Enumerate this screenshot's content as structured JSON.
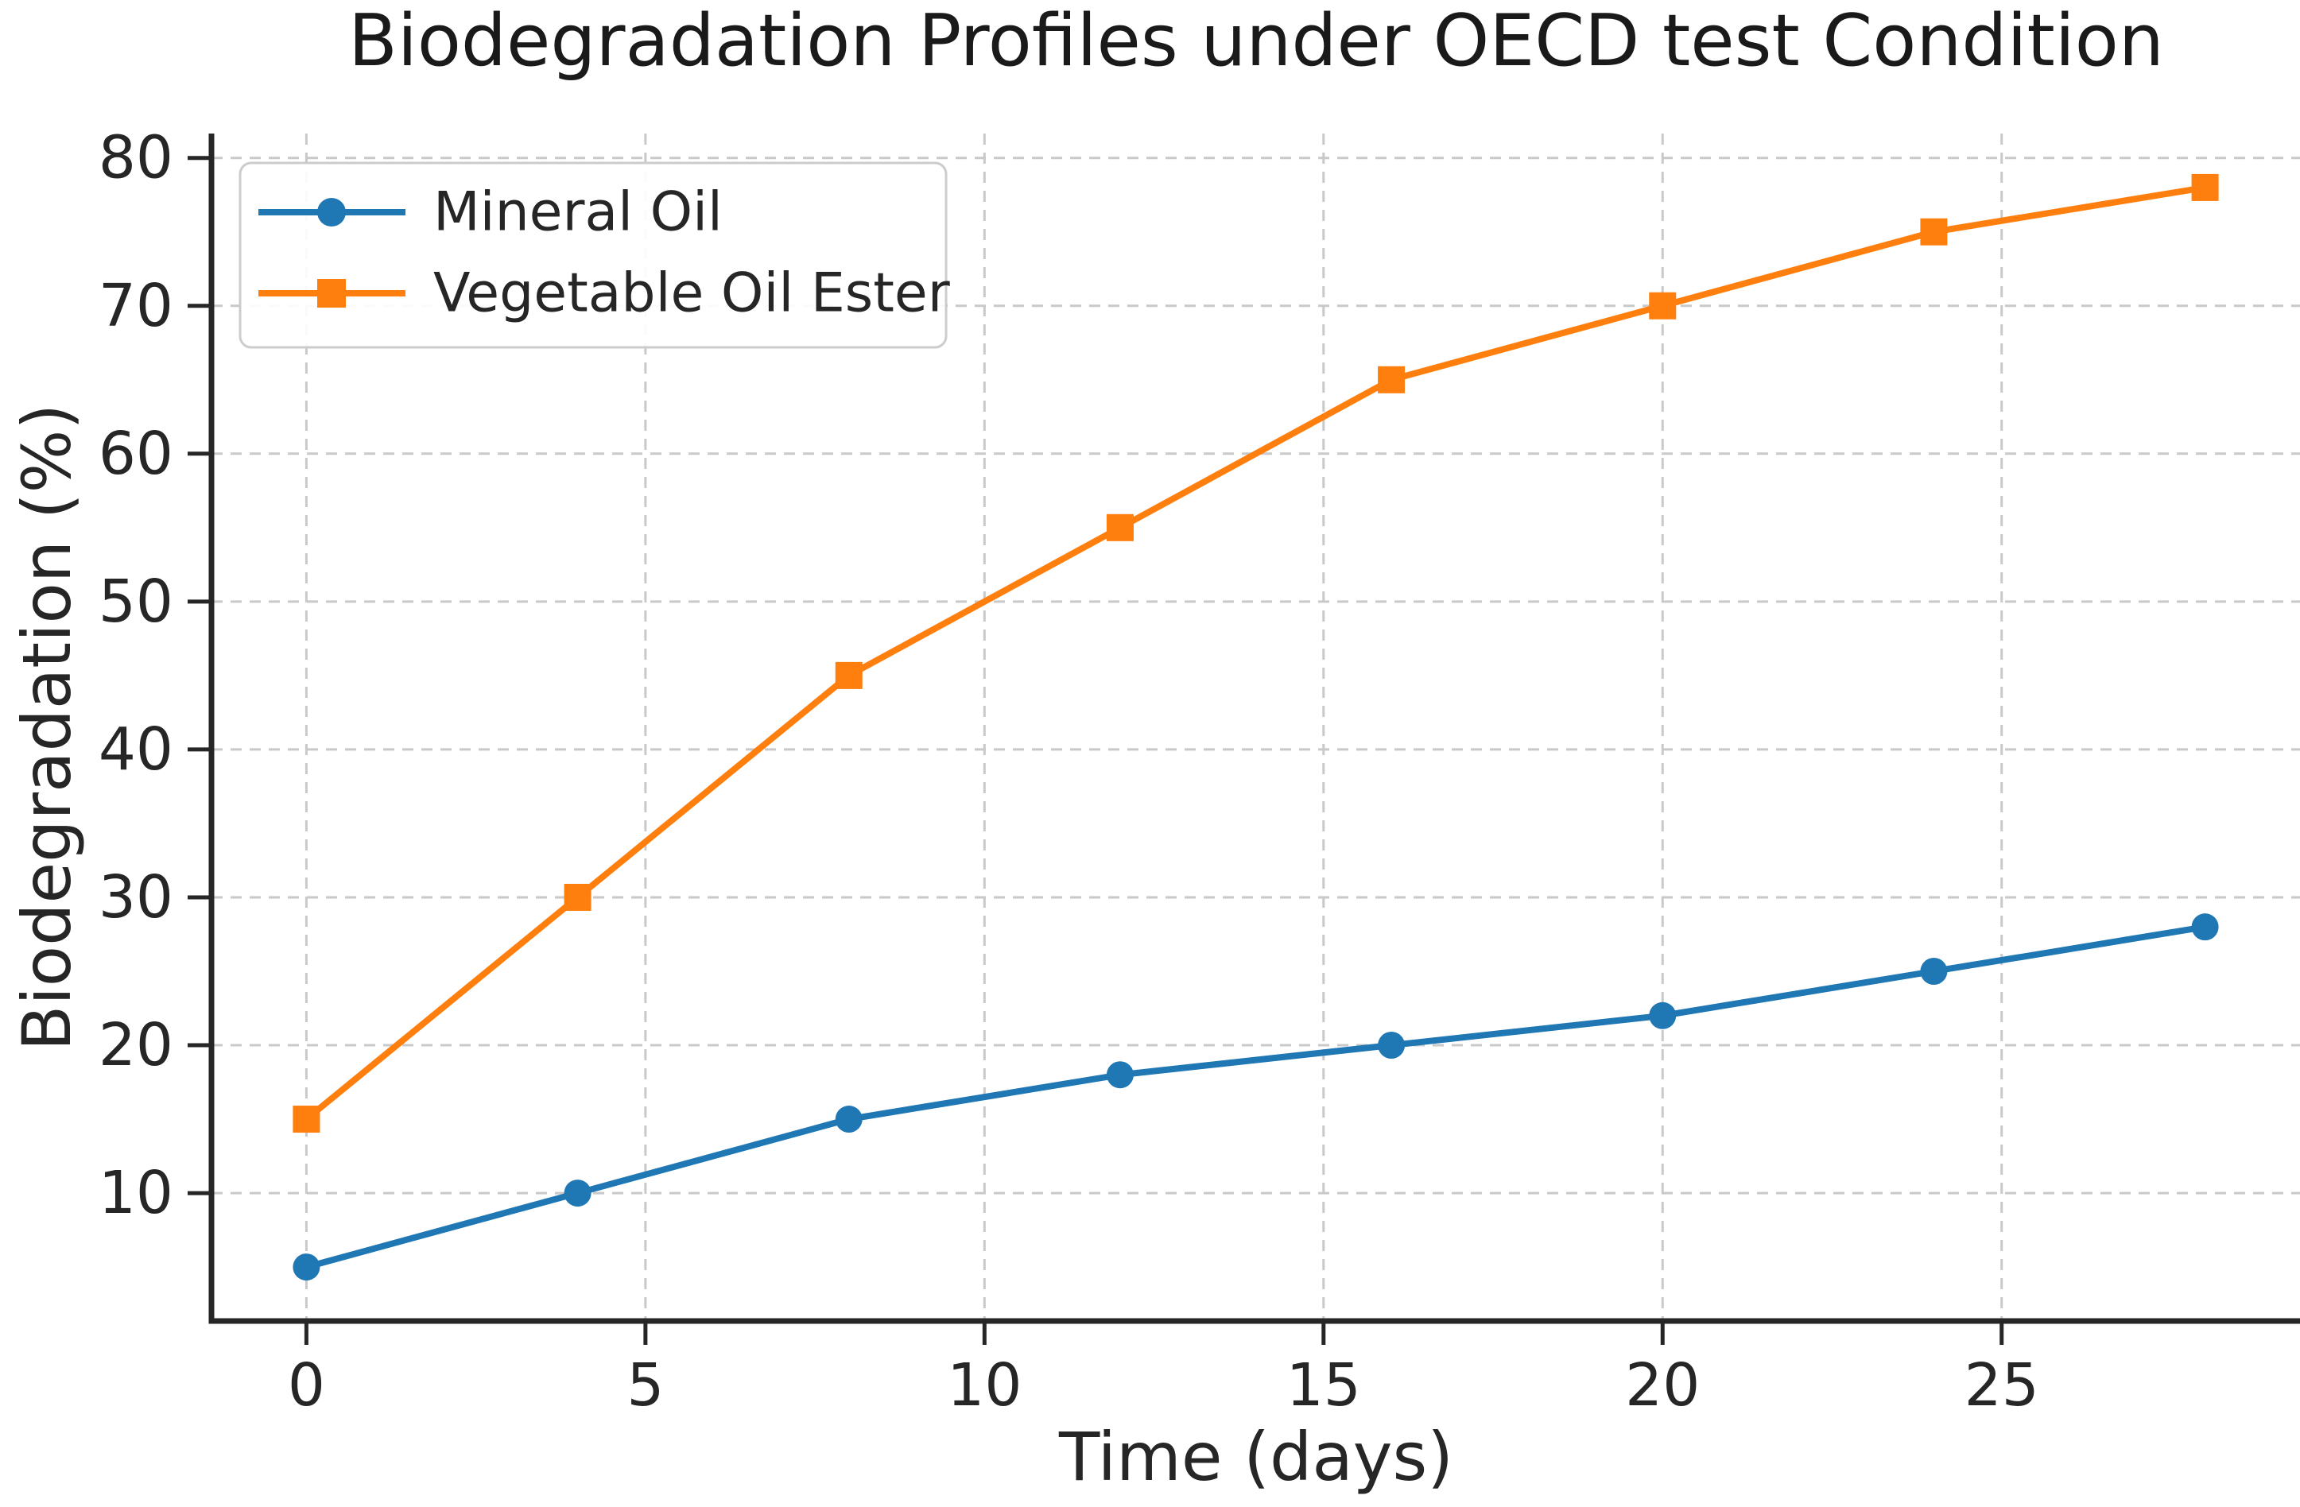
{
  "chart_data": {
    "type": "line",
    "title": "Biodegradation Profiles under OECD test Condition",
    "xlabel": "Time (days)",
    "ylabel": "Biodegradation (%)",
    "x": [
      0,
      4,
      8,
      12,
      16,
      20,
      24,
      28
    ],
    "series": [
      {
        "name": "Mineral Oil",
        "color": "#1f77b4",
        "marker": "circle",
        "values": [
          5,
          10,
          15,
          18,
          20,
          22,
          25,
          28
        ]
      },
      {
        "name": "Vegetable Oil Ester",
        "color": "#ff7f0e",
        "marker": "square",
        "values": [
          15,
          30,
          45,
          55,
          65,
          70,
          75,
          78
        ]
      }
    ],
    "xlim": [
      -1.4,
      29.4
    ],
    "ylim": [
      1.35,
      81.65
    ],
    "xticks": [
      0,
      5,
      10,
      15,
      20,
      25
    ],
    "yticks": [
      10,
      20,
      30,
      40,
      50,
      60,
      70,
      80
    ],
    "grid": true,
    "grid_style": "dashed",
    "legend_position": "upper left",
    "background_color": "#ffffff",
    "spine_color": "#262626"
  }
}
